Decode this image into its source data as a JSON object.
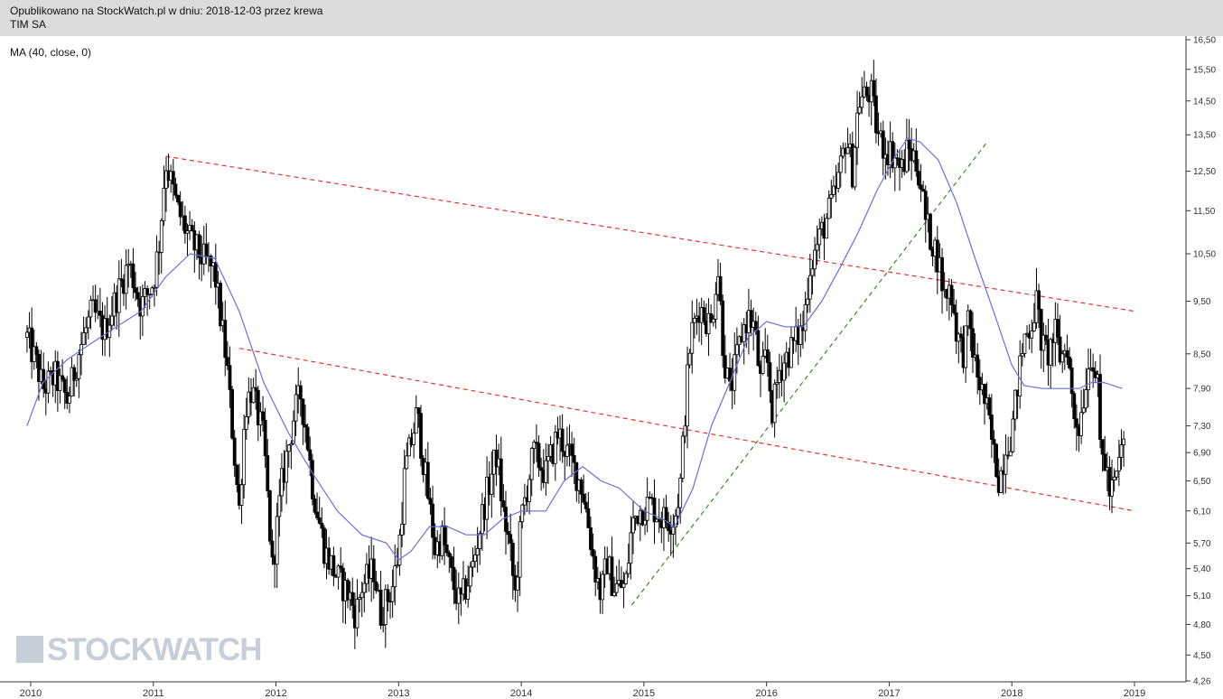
{
  "header": {
    "published": "Opublikowano na StockWatch.pl w dniu: 2018-12-03 przez krewa",
    "ticker": "TIM SA"
  },
  "indicator_label": "MA (40, close, 0)",
  "watermark": "STOCKWATCH",
  "colors": {
    "header_bg": "#dcdcdc",
    "candles": "#000000",
    "ma_line": "#6a6fdc",
    "resistance_lines": "#e8332b",
    "support_trend_line": "#3a8a2a"
  },
  "chart_data": {
    "type": "candlestick",
    "title": "TIM SA",
    "indicator": "MA (40, close, 0)",
    "y_scale": "log",
    "ylim": [
      4.26,
      16.5
    ],
    "yticks": [
      16.5,
      15.5,
      14.5,
      13.5,
      12.5,
      11.5,
      10.5,
      9.5,
      8.5,
      7.9,
      7.3,
      6.9,
      6.5,
      6.1,
      5.7,
      5.4,
      5.1,
      4.8,
      4.5,
      4.26
    ],
    "ytick_labels": [
      "16,50",
      "15,50",
      "14,50",
      "13,50",
      "12,50",
      "11,50",
      "10,50",
      "9,50",
      "8,50",
      "7,90",
      "7,30",
      "6,90",
      "6,50",
      "6,10",
      "5,70",
      "5,40",
      "5,10",
      "4,80",
      "4,50",
      "4,26"
    ],
    "xlim": [
      2009.95,
      2019.05
    ],
    "xticks": [
      2010,
      2011,
      2012,
      2013,
      2014,
      2015,
      2016,
      2017,
      2018,
      2019
    ],
    "xtick_labels": [
      "2010",
      "2011",
      "2012",
      "2013",
      "2014",
      "2015",
      "2016",
      "2017",
      "2018",
      "2019"
    ],
    "close_path": [
      [
        2009.97,
        8.8
      ],
      [
        2010.05,
        8.3
      ],
      [
        2010.1,
        7.9
      ],
      [
        2010.2,
        8.1
      ],
      [
        2010.3,
        7.7
      ],
      [
        2010.4,
        8.6
      ],
      [
        2010.5,
        9.3
      ],
      [
        2010.6,
        8.9
      ],
      [
        2010.7,
        9.6
      ],
      [
        2010.8,
        10.3
      ],
      [
        2010.9,
        9.4
      ],
      [
        2011.0,
        9.9
      ],
      [
        2011.05,
        10.8
      ],
      [
        2011.1,
        12.8
      ],
      [
        2011.2,
        11.5
      ],
      [
        2011.3,
        10.8
      ],
      [
        2011.4,
        10.4
      ],
      [
        2011.5,
        10.1
      ],
      [
        2011.6,
        8.3
      ],
      [
        2011.65,
        7.1
      ],
      [
        2011.7,
        6.1
      ],
      [
        2011.75,
        7.6
      ],
      [
        2011.8,
        7.9
      ],
      [
        2011.9,
        7.1
      ],
      [
        2011.97,
        5.4
      ],
      [
        2012.05,
        6.5
      ],
      [
        2012.15,
        7.5
      ],
      [
        2012.2,
        7.8
      ],
      [
        2012.25,
        7.2
      ],
      [
        2012.3,
        6.4
      ],
      [
        2012.4,
        5.6
      ],
      [
        2012.5,
        5.3
      ],
      [
        2012.6,
        5.1
      ],
      [
        2012.65,
        4.9
      ],
      [
        2012.7,
        5.2
      ],
      [
        2012.8,
        5.4
      ],
      [
        2012.85,
        4.9
      ],
      [
        2012.95,
        5.2
      ],
      [
        2013.0,
        5.6
      ],
      [
        2013.05,
        6.6
      ],
      [
        2013.15,
        7.5
      ],
      [
        2013.2,
        6.8
      ],
      [
        2013.3,
        5.6
      ],
      [
        2013.35,
        5.8
      ],
      [
        2013.45,
        5.2
      ],
      [
        2013.5,
        5.0
      ],
      [
        2013.6,
        5.4
      ],
      [
        2013.7,
        6.2
      ],
      [
        2013.8,
        6.9
      ],
      [
        2013.85,
        6.1
      ],
      [
        2013.9,
        5.7
      ],
      [
        2013.95,
        5.1
      ],
      [
        2014.0,
        6.0
      ],
      [
        2014.1,
        6.9
      ],
      [
        2014.2,
        6.6
      ],
      [
        2014.3,
        7.2
      ],
      [
        2014.4,
        6.8
      ],
      [
        2014.5,
        6.4
      ],
      [
        2014.55,
        5.9
      ],
      [
        2014.6,
        5.4
      ],
      [
        2014.65,
        5.1
      ],
      [
        2014.7,
        5.5
      ],
      [
        2014.75,
        5.2
      ],
      [
        2014.85,
        5.2
      ],
      [
        2014.9,
        5.9
      ],
      [
        2014.95,
        6.1
      ],
      [
        2015.05,
        6.2
      ],
      [
        2015.15,
        6.0
      ],
      [
        2015.25,
        6.0
      ],
      [
        2015.3,
        6.5
      ],
      [
        2015.33,
        7.4
      ],
      [
        2015.38,
        8.8
      ],
      [
        2015.45,
        9.4
      ],
      [
        2015.5,
        9.2
      ],
      [
        2015.55,
        9.0
      ],
      [
        2015.6,
        10.3
      ],
      [
        2015.65,
        8.5
      ],
      [
        2015.7,
        7.8
      ],
      [
        2015.8,
        8.9
      ],
      [
        2015.85,
        9.2
      ],
      [
        2015.9,
        9.0
      ],
      [
        2015.95,
        8.0
      ],
      [
        2016.0,
        8.5
      ],
      [
        2016.05,
        7.5
      ],
      [
        2016.1,
        8.2
      ],
      [
        2016.2,
        8.6
      ],
      [
        2016.3,
        9.0
      ],
      [
        2016.35,
        10.2
      ],
      [
        2016.45,
        11.0
      ],
      [
        2016.55,
        11.8
      ],
      [
        2016.6,
        12.5
      ],
      [
        2016.65,
        13.5
      ],
      [
        2016.7,
        12.5
      ],
      [
        2016.75,
        14.5
      ],
      [
        2016.85,
        14.8
      ],
      [
        2016.9,
        13.6
      ],
      [
        2016.95,
        13.2
      ],
      [
        2017.05,
        12.9
      ],
      [
        2017.1,
        12.5
      ],
      [
        2017.15,
        13.1
      ],
      [
        2017.2,
        12.9
      ],
      [
        2017.25,
        12.4
      ],
      [
        2017.3,
        11.2
      ],
      [
        2017.35,
        10.8
      ],
      [
        2017.4,
        10.4
      ],
      [
        2017.45,
        9.6
      ],
      [
        2017.5,
        9.8
      ],
      [
        2017.55,
        8.9
      ],
      [
        2017.6,
        8.5
      ],
      [
        2017.65,
        9.1
      ],
      [
        2017.7,
        8.3
      ],
      [
        2017.75,
        7.9
      ],
      [
        2017.8,
        7.5
      ],
      [
        2017.85,
        6.9
      ],
      [
        2017.9,
        6.5
      ],
      [
        2017.95,
        7.0
      ],
      [
        2018.0,
        7.2
      ],
      [
        2018.05,
        8.0
      ],
      [
        2018.1,
        8.8
      ],
      [
        2018.15,
        9.0
      ],
      [
        2018.2,
        9.5
      ],
      [
        2018.25,
        8.6
      ],
      [
        2018.3,
        8.5
      ],
      [
        2018.35,
        8.9
      ],
      [
        2018.4,
        8.4
      ],
      [
        2018.45,
        8.7
      ],
      [
        2018.5,
        7.5
      ],
      [
        2018.55,
        7.3
      ],
      [
        2018.6,
        8.0
      ],
      [
        2018.65,
        8.6
      ],
      [
        2018.7,
        7.9
      ],
      [
        2018.72,
        7.0
      ],
      [
        2018.77,
        6.7
      ],
      [
        2018.8,
        6.3
      ],
      [
        2018.85,
        6.5
      ],
      [
        2018.88,
        6.8
      ],
      [
        2018.92,
        7.2
      ]
    ],
    "ma40_path": [
      [
        2009.97,
        7.3
      ],
      [
        2010.1,
        8.0
      ],
      [
        2010.3,
        8.4
      ],
      [
        2010.5,
        8.7
      ],
      [
        2010.7,
        9.0
      ],
      [
        2010.9,
        9.3
      ],
      [
        2011.1,
        10.0
      ],
      [
        2011.3,
        10.5
      ],
      [
        2011.5,
        10.4
      ],
      [
        2011.7,
        9.3
      ],
      [
        2011.9,
        8.0
      ],
      [
        2012.1,
        7.2
      ],
      [
        2012.3,
        6.6
      ],
      [
        2012.5,
        6.1
      ],
      [
        2012.7,
        5.8
      ],
      [
        2012.9,
        5.7
      ],
      [
        2013.0,
        5.5
      ],
      [
        2013.1,
        5.6
      ],
      [
        2013.25,
        5.9
      ],
      [
        2013.4,
        5.9
      ],
      [
        2013.55,
        5.8
      ],
      [
        2013.7,
        5.8
      ],
      [
        2013.85,
        6.0
      ],
      [
        2014.0,
        6.1
      ],
      [
        2014.2,
        6.1
      ],
      [
        2014.35,
        6.5
      ],
      [
        2014.5,
        6.7
      ],
      [
        2014.65,
        6.5
      ],
      [
        2014.8,
        6.4
      ],
      [
        2015.0,
        6.1
      ],
      [
        2015.15,
        6.0
      ],
      [
        2015.25,
        5.9
      ],
      [
        2015.4,
        6.4
      ],
      [
        2015.55,
        7.3
      ],
      [
        2015.7,
        8.0
      ],
      [
        2015.85,
        8.8
      ],
      [
        2016.0,
        9.1
      ],
      [
        2016.15,
        9.0
      ],
      [
        2016.3,
        9.0
      ],
      [
        2016.45,
        9.5
      ],
      [
        2016.6,
        10.2
      ],
      [
        2016.75,
        11.0
      ],
      [
        2016.9,
        12.0
      ],
      [
        2017.05,
        12.9
      ],
      [
        2017.15,
        13.4
      ],
      [
        2017.25,
        13.3
      ],
      [
        2017.4,
        12.8
      ],
      [
        2017.55,
        11.7
      ],
      [
        2017.7,
        10.4
      ],
      [
        2017.85,
        9.3
      ],
      [
        2018.0,
        8.3
      ],
      [
        2018.1,
        7.95
      ],
      [
        2018.25,
        7.9
      ],
      [
        2018.4,
        7.9
      ],
      [
        2018.55,
        7.9
      ],
      [
        2018.65,
        8.0
      ],
      [
        2018.75,
        8.0
      ],
      [
        2018.9,
        7.9
      ]
    ],
    "trendlines": [
      {
        "name": "upper-resistance",
        "style": "red-dashed",
        "from": [
          2011.1,
          12.9
        ],
        "to": [
          2019.0,
          9.3
        ]
      },
      {
        "name": "lower-channel",
        "style": "red-dashed",
        "from": [
          2011.7,
          8.6
        ],
        "to": [
          2019.0,
          6.1
        ]
      },
      {
        "name": "support-uptrend",
        "style": "green-dashed",
        "from": [
          2014.9,
          5.0
        ],
        "to": [
          2017.8,
          13.3
        ]
      }
    ],
    "ytick_axis": "right",
    "grid": false,
    "legend": "top-left"
  }
}
